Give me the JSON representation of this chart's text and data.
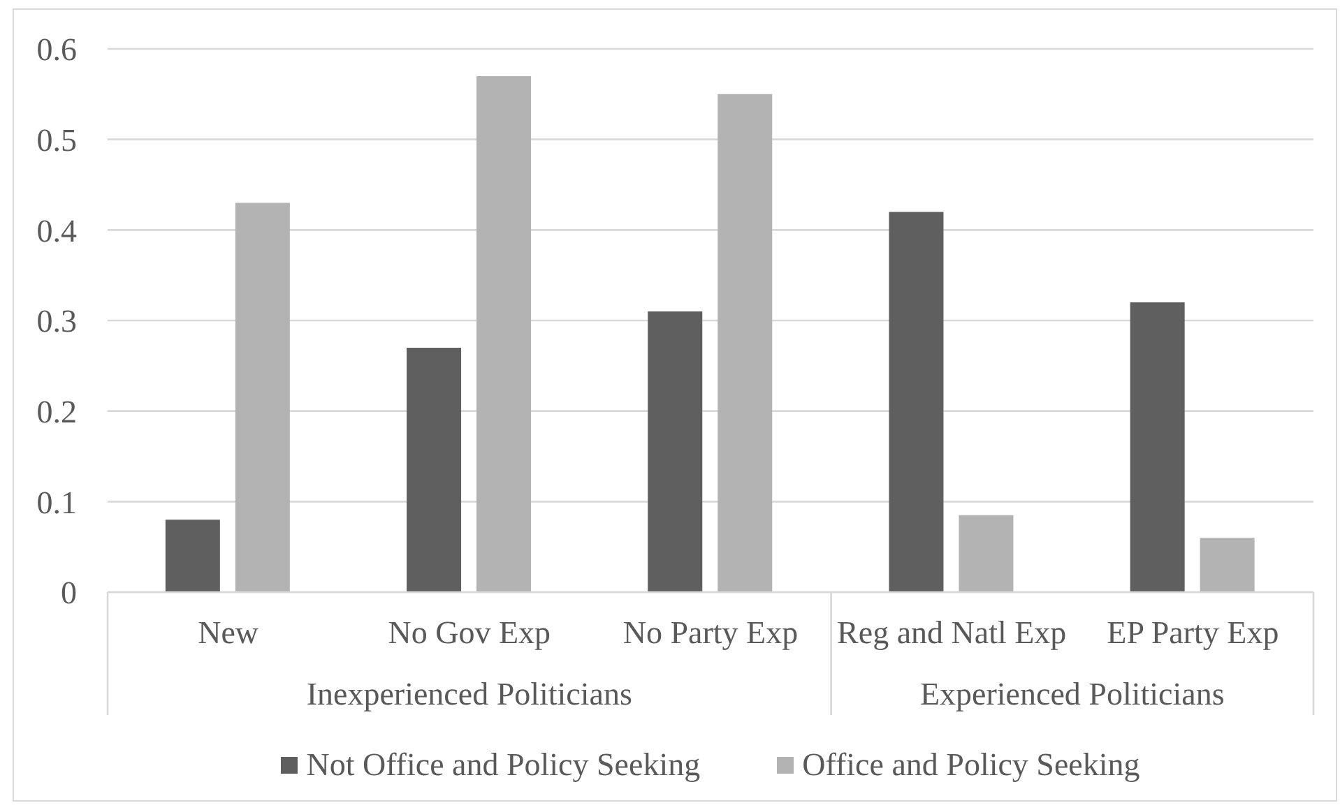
{
  "chart_data": {
    "type": "bar",
    "categories": [
      "New",
      "No Gov Exp",
      "No Party Exp",
      "Reg and Natl Exp",
      "EP Party Exp"
    ],
    "series": [
      {
        "name": "Not Office and Policy Seeking",
        "color": "#5f5f5f",
        "values": [
          0.08,
          0.27,
          0.31,
          0.42,
          0.32
        ]
      },
      {
        "name": "Office and Policy Seeking",
        "color": "#b3b3b3",
        "values": [
          0.43,
          0.57,
          0.55,
          0.085,
          0.06
        ]
      }
    ],
    "ylim": [
      0,
      0.6
    ],
    "yticks": [
      0,
      0.1,
      0.2,
      0.3,
      0.4,
      0.5,
      0.6
    ],
    "grid": "y",
    "legend": "bottom",
    "annotations": [
      "Inexperienced Politicians",
      "Experienced Politicians"
    ]
  }
}
